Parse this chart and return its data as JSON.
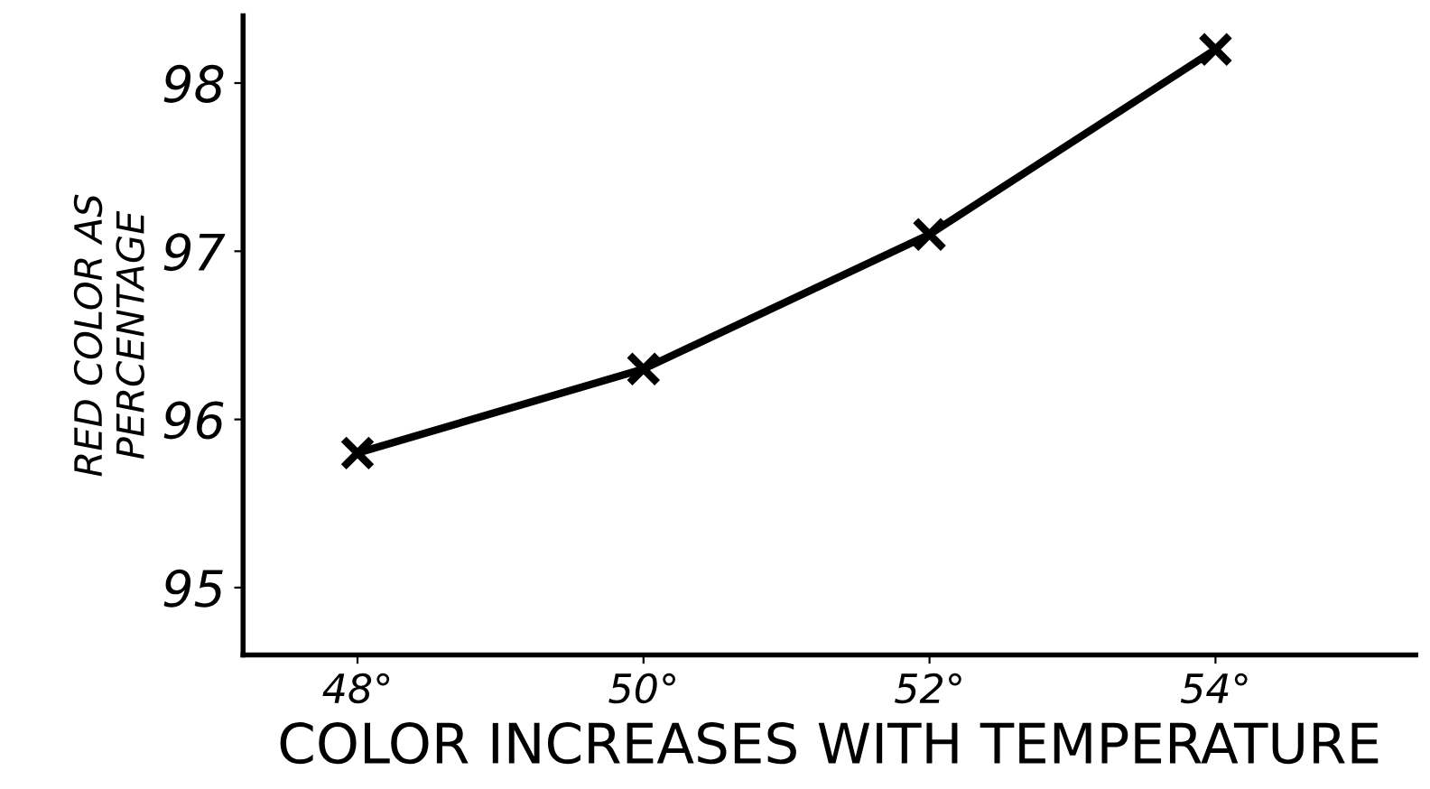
{
  "chart_data": {
    "type": "line",
    "xlabel": "COLOR INCREASES WITH TEMPERATURE",
    "ylabel": "RED COLOR AS\nPERCENTAGE",
    "x": [
      48,
      50,
      52,
      54
    ],
    "series": [
      {
        "color": "#000000",
        "values": [
          95.8,
          96.3,
          97.1,
          98.2
        ]
      }
    ],
    "xlim": [
      47.2,
      55.4
    ],
    "xticks": [
      {
        "value": 48,
        "label": "48°"
      },
      {
        "value": 50,
        "label": "50°"
      },
      {
        "value": 52,
        "label": "52°"
      },
      {
        "value": 54,
        "label": "54°"
      }
    ],
    "ylim": [
      94.6,
      98.4
    ],
    "yticks": [
      95,
      96,
      97,
      98
    ],
    "marker": "cross",
    "line_style": "solid",
    "grid": false,
    "legend": false
  }
}
